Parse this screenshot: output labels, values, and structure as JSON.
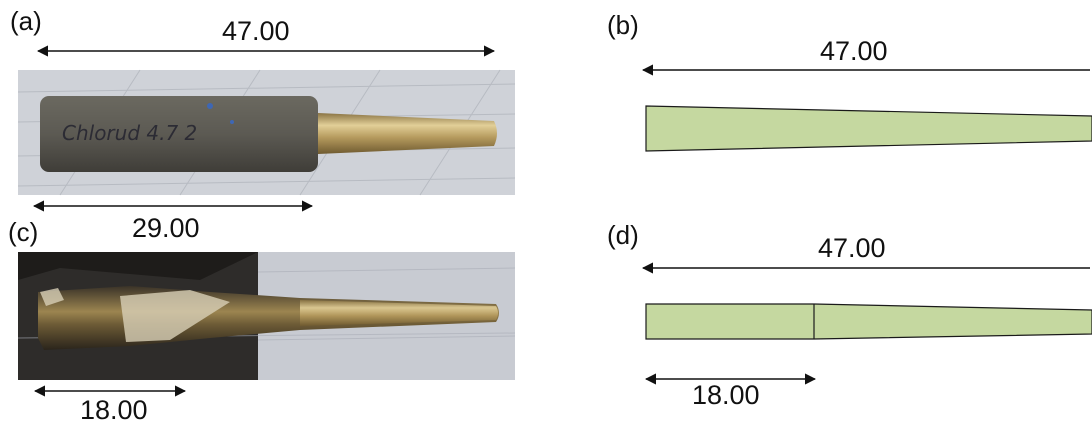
{
  "panels": {
    "a": {
      "label": "(a)",
      "dim_overall": "47.00",
      "dim_section": "29.00",
      "handwriting": "Chlorud 4.7 2"
    },
    "b": {
      "label": "(b)",
      "dim_overall": "47.00"
    },
    "c": {
      "label": "(c)",
      "dim_section": "18.00"
    },
    "d": {
      "label": "(d)",
      "dim_overall": "47.00",
      "dim_section": "18.00"
    }
  },
  "colors": {
    "model_fill": "#c5d8a0",
    "outline": "#1a1a1a",
    "arrow": "#111111",
    "photo_bg_a": "#cfd2d8",
    "photo_bg_c": "#c8cbd2",
    "clay": "#5c5a53",
    "brass": "#b59a5d"
  }
}
